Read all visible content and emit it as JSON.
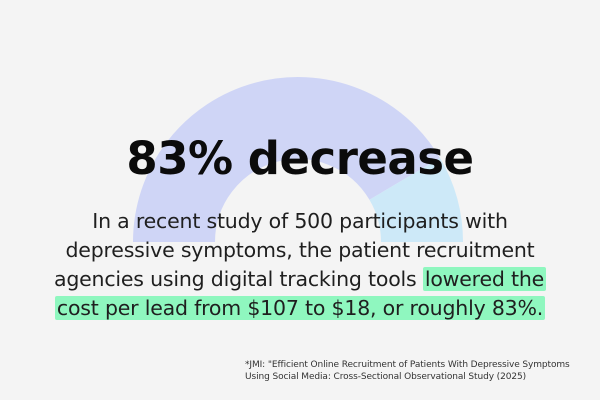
{
  "gauge": {
    "value_percent": 83,
    "colors": {
      "primary": "#cfd5f6",
      "remainder": "#cde9f8"
    }
  },
  "content": {
    "headline": "83% decrease",
    "body_line_1": "In a recent study of 500 participants with",
    "body_line_2": "depressive symptoms, the patient recruitment",
    "body_line_3_prefix": "agencies using digital tracking tools ",
    "body_line_3_highlight": "lowered the",
    "body_line_4_highlight": "cost per lead from $107 to $18, or roughly 83%.",
    "highlight_color": "#8ff7bf"
  },
  "footnote": {
    "line_1": "*JMI: \"Efficient Online Recruitment of Patients With Depressive Symptoms",
    "line_2": "Using Social Media: Cross-Sectional Observational Study (2025)"
  }
}
